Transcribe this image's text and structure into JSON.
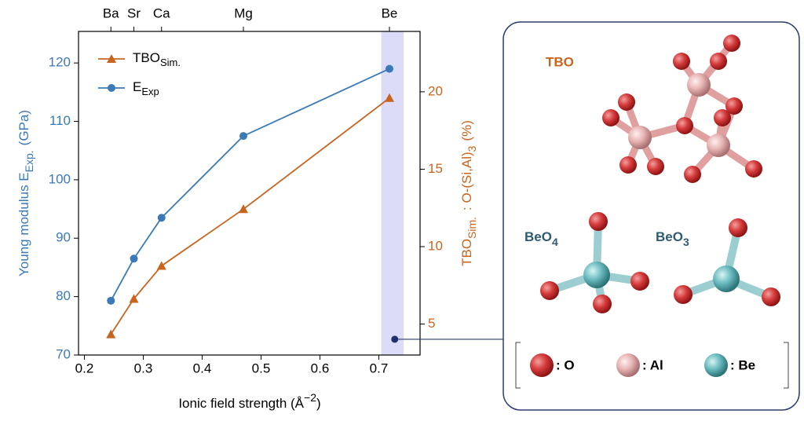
{
  "chart_data": {
    "type": "line",
    "x_label": {
      "main": "Ionic field strength (Å",
      "sup": "−2",
      "tail": ")"
    },
    "y_label": {
      "main": "Young modulus E",
      "sub": "Exp.",
      "tail": "(GPa)"
    },
    "y2_label": {
      "main": "TBO",
      "sub": "Sim.",
      "mid": ": O-(Si,Al)",
      "sub2": "3",
      "tail": "(%)"
    },
    "xlim": [
      0.19,
      0.77
    ],
    "xticks": [
      0.2,
      0.3,
      0.4,
      0.5,
      0.6,
      0.7
    ],
    "ylim": [
      70,
      125.4
    ],
    "yticks": [
      70,
      80,
      90,
      100,
      110,
      120
    ],
    "y2lim": [
      3,
      23.9
    ],
    "y2ticks": [
      5,
      10,
      15,
      20
    ],
    "top_ticks": [
      {
        "value": 0.245,
        "label": "Ba"
      },
      {
        "value": 0.284,
        "label": "Sr"
      },
      {
        "value": 0.331,
        "label": "Ca"
      },
      {
        "value": 0.47,
        "label": "Mg"
      },
      {
        "value": 0.718,
        "label": "Be"
      }
    ],
    "highlight": [
      0.704,
      0.742
    ],
    "callout_point": {
      "x": 0.727,
      "y": 72.7
    },
    "legend": "upper left",
    "series": [
      {
        "name": "TBO",
        "name_sub": "Sim.",
        "color": "#c8641e",
        "marker": "triangle",
        "axis": "y2",
        "x": [
          0.245,
          0.284,
          0.331,
          0.47,
          0.718
        ],
        "values": [
          4.34,
          6.63,
          8.76,
          12.42,
          19.6
        ]
      },
      {
        "name": "E",
        "name_sub": "Exp",
        "color": "#3a7ab8",
        "marker": "circle",
        "x": [
          0.245,
          0.284,
          0.331,
          0.47,
          0.718
        ],
        "values": [
          79.3,
          86.5,
          93.5,
          107.5,
          119
        ]
      }
    ]
  },
  "panel": {
    "title": "TBO",
    "beo4": {
      "main": "BeO",
      "sub": "4"
    },
    "beo3": {
      "main": "BeO",
      "sub": "3"
    },
    "legend": [
      ": O",
      ": Al",
      ": Be"
    ]
  }
}
